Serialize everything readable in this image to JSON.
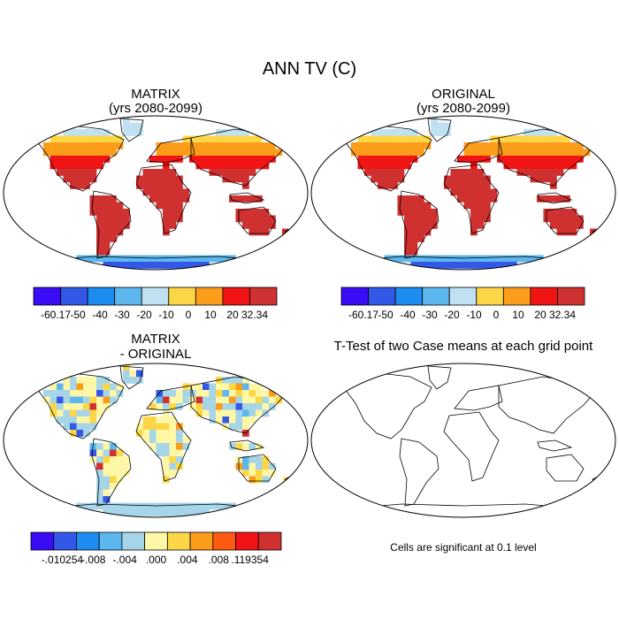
{
  "figure": {
    "title": "ANN TV (C)"
  },
  "colors": {
    "main": [
      "#3a0bf5",
      "#3358e8",
      "#1c8cf0",
      "#5cb7ee",
      "#bfe1f2",
      "#fbd747",
      "#fb9c1a",
      "#f01414",
      "#cf3030"
    ],
    "diff": [
      "#3a0bf5",
      "#3358e8",
      "#1c8cf0",
      "#5cb7ee",
      "#a6d5ea",
      "#fdf7a6",
      "#fbd747",
      "#fb9c1a",
      "#ff5a11",
      "#f01414",
      "#cf3030"
    ],
    "land_outline": "#000000"
  },
  "chart_data": [
    {
      "type": "heatmap",
      "id": "matrix",
      "title": "MATRIX",
      "subtitle": "(yrs 2080-2099)",
      "colorbar": {
        "labels": [
          "-60.17",
          "-50",
          "-40",
          "-30",
          "-20",
          "-10",
          "0",
          "10",
          "20",
          "32.34"
        ],
        "range": [
          -60.17,
          32.34
        ]
      }
    },
    {
      "type": "heatmap",
      "id": "original",
      "title": "ORIGINAL",
      "subtitle": "(yrs 2080-2099)",
      "colorbar": {
        "labels": [
          "-60.17",
          "-50",
          "-40",
          "-30",
          "-20",
          "-10",
          "0",
          "10",
          "20",
          "32.34"
        ],
        "range": [
          -60.17,
          32.34
        ]
      }
    },
    {
      "type": "heatmap",
      "id": "difference",
      "title": "MATRIX",
      "subtitle": "- ORIGINAL",
      "colorbar": {
        "labels": [
          "-.010254",
          "-.008",
          "-.004",
          ".000",
          ".004",
          ".008",
          ".119354"
        ],
        "range": [
          -0.010254,
          0.119354
        ]
      }
    },
    {
      "type": "heatmap",
      "id": "ttest",
      "title": "T-Test of two Case means at each grid point",
      "note": "Cells are significant at 0.1 level"
    }
  ]
}
